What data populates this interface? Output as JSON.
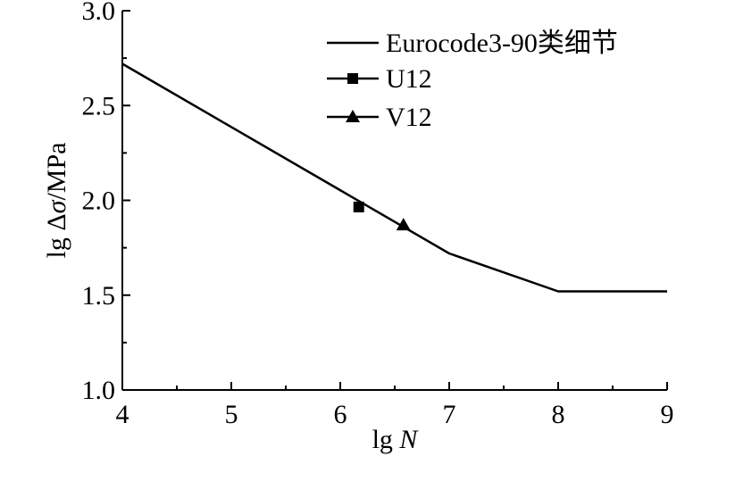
{
  "chart_data": {
    "type": "line",
    "xlabel_prefix": "lg ",
    "xlabel_var": "N",
    "ylabel_prefix": "lg Δ",
    "ylabel_var": "σ",
    "ylabel_suffix": "/MPa",
    "xlim": [
      4,
      9
    ],
    "ylim": [
      1.0,
      3.0
    ],
    "x_ticks": [
      4,
      5,
      6,
      7,
      8,
      9
    ],
    "x_tick_labels": [
      "4",
      "5",
      "6",
      "7",
      "8",
      "9"
    ],
    "y_ticks": [
      1.0,
      1.5,
      2.0,
      2.5,
      3.0
    ],
    "y_tick_labels": [
      "1.0",
      "1.5",
      "2.0",
      "2.5",
      "3.0"
    ],
    "grid": false,
    "legend_position": "top-right",
    "series": [
      {
        "name": "Eurocode3-90类细节",
        "kind": "line",
        "x": [
          4,
          7,
          8,
          9
        ],
        "y": [
          2.72,
          1.72,
          1.52,
          1.52
        ]
      },
      {
        "name": "U12",
        "kind": "marker",
        "marker": "square",
        "x": [
          6.17
        ],
        "y": [
          1.965
        ]
      },
      {
        "name": "V12",
        "kind": "marker",
        "marker": "triangle",
        "x": [
          6.58
        ],
        "y": [
          1.87
        ]
      }
    ]
  }
}
